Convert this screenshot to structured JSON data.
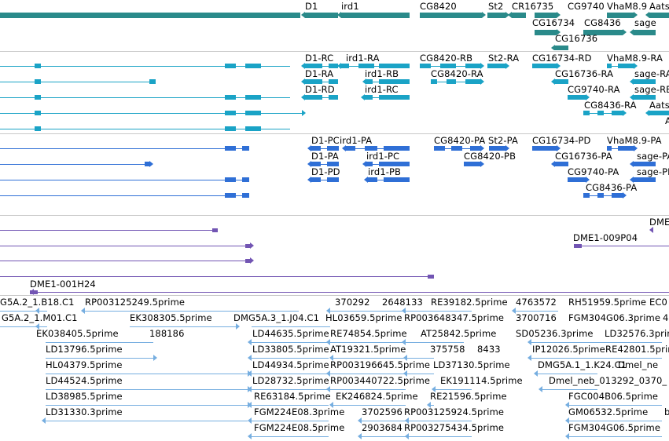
{
  "colors": {
    "gene": "#2a8a8a",
    "transcript": "#1aa3c6",
    "protein": "#2f6fd6",
    "clone": "#7255b3",
    "est": "#76aee0",
    "separator": "#c8c8c8"
  },
  "tracks": [
    {
      "id": "genes",
      "color": "#2a8a8a",
      "labels": [
        "D1",
        "ird1",
        "CG8420",
        "St2",
        "CR16735",
        "CG9740",
        "VhaM8.9",
        "Aats",
        "CG16734",
        "CG8436",
        "sage",
        "CG16736"
      ]
    },
    {
      "id": "transcripts",
      "color": "#1aa3c6",
      "labels": [
        "D1-RC",
        "ird1-RA",
        "CG8420-RB",
        "St2-RA",
        "CG16734-RD",
        "VhaM8.9-RA",
        "D1-RA",
        "ird1-RB",
        "CG8420-RA",
        "CG16736-RA",
        "sage-RA",
        "D1-RD",
        "ird1-RC",
        "CG9740-RA",
        "sage-RB",
        "CG8436-RA",
        "Aats",
        "A"
      ]
    },
    {
      "id": "proteins",
      "color": "#2f6fd6",
      "labels": [
        "D1-PC",
        "ird1-PA",
        "CG8420-PA",
        "St2-PA",
        "CG16734-PD",
        "VhaM8.9-PA",
        "D1-PA",
        "ird1-PC",
        "CG8420-PB",
        "CG16736-PA",
        "sage-PA",
        "D1-PD",
        "ird1-PB",
        "CG9740-PA",
        "sage-PB",
        "CG8436-PA"
      ]
    },
    {
      "id": "clones",
      "color": "#7255b3",
      "labels": [
        "DME",
        "DME1-009P04",
        "DME1-001H24"
      ]
    },
    {
      "id": "ests",
      "color": "#76aee0",
      "labels": [
        "G5A.2_1.B18.C1",
        "RP003125249.5prime",
        "370292",
        "2648133",
        "RE39182.5prime",
        "4763572",
        "RH51959.5prime",
        "EC0",
        "G5A.2_1.M01.C1",
        "EK308305.5prime",
        "DMG5A.3_1.J04.C1",
        "HL03659.5prime",
        "RP003648347.5prime",
        "3700716",
        "FGM304G06.3prime",
        "4",
        "EK038405.5prime",
        "188186",
        "LD44635.5prime",
        "RE74854.5prime",
        "AT25842.5prime",
        "SD05236.3prime",
        "LD32576.3prime",
        "LD13796.5prime",
        "LD33805.5prime",
        "AT19321.5prime",
        "375758",
        "8433",
        "IP12026.5prime",
        "RE42801.5prime",
        "HL04379.5prime",
        "LD44934.5prime",
        "RP003196645.5prime",
        "LD37130.5prime",
        "DMG5A.1_1.K24.C1",
        "Dmel_ne",
        "LD44524.5prime",
        "LD28732.5prime",
        "RP003440722.5prime",
        "EK191114.5prime",
        "Dmel_neb_013292_0370_",
        "LD38985.5prime",
        "RE63184.5prime",
        "EK246824.5prime",
        "RE21596.5prime",
        "FGC004B06.5prime",
        "LD31330.3prime",
        "FGM224E08.3prime",
        "3702596",
        "RP003125924.5prime",
        "GM06532.5prime",
        "b",
        "FGM224E08.5prime",
        "2903684",
        "RP003275434.5prime",
        "FGM304G06.5prime"
      ]
    }
  ]
}
